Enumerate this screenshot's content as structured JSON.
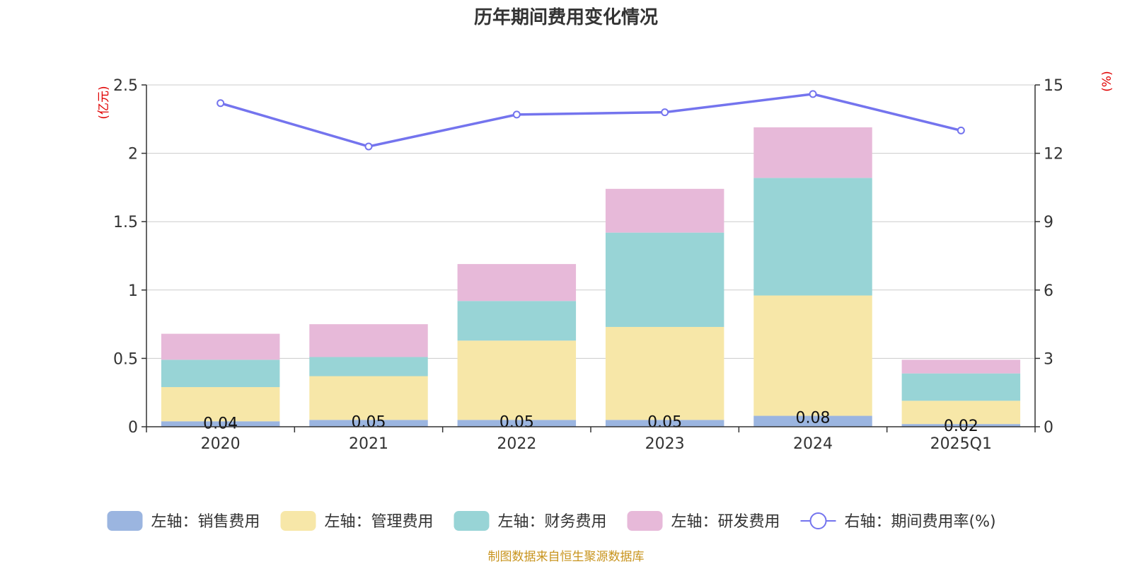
{
  "chart_data": {
    "type": "bar",
    "title": "历年期间费用变化情况",
    "categories": [
      "2020",
      "2021",
      "2022",
      "2023",
      "2024",
      "2025Q1"
    ],
    "left_axis": {
      "unit_label": "(亿元)",
      "ylim": [
        0,
        2.5
      ],
      "ticks": [
        0,
        0.5,
        1,
        1.5,
        2,
        2.5
      ],
      "tick_labels": [
        "0",
        "0.5",
        "1",
        "1.5",
        "2",
        "2.5"
      ]
    },
    "right_axis": {
      "unit_label": "(%)",
      "ylim": [
        0,
        15
      ],
      "ticks": [
        0,
        3,
        6,
        9,
        12,
        15
      ],
      "tick_labels": [
        "0",
        "3",
        "6",
        "9",
        "12",
        "15"
      ]
    },
    "grid": true,
    "series": [
      {
        "name": "左轴：销售费用",
        "axis": "left",
        "kind": "bar",
        "color": "#9bb5e0",
        "values": [
          0.04,
          0.05,
          0.05,
          0.05,
          0.08,
          0.02
        ],
        "labels": [
          "0.04",
          "0.05",
          "0.05",
          "0.05",
          "0.08",
          "0.02"
        ]
      },
      {
        "name": "左轴：管理费用",
        "axis": "left",
        "kind": "bar",
        "color": "#f7e7a8",
        "values": [
          0.25,
          0.32,
          0.58,
          0.68,
          0.88,
          0.17
        ]
      },
      {
        "name": "左轴：财务费用",
        "axis": "left",
        "kind": "bar",
        "color": "#98d4d6",
        "values": [
          0.2,
          0.14,
          0.29,
          0.69,
          0.86,
          0.2
        ]
      },
      {
        "name": "左轴：研发费用",
        "axis": "left",
        "kind": "bar",
        "color": "#e7b9d9",
        "values": [
          0.19,
          0.24,
          0.27,
          0.32,
          0.37,
          0.1
        ]
      },
      {
        "name": "右轴：期间费用率(%)",
        "axis": "right",
        "kind": "line",
        "color": "#7474ee",
        "values": [
          14.2,
          12.3,
          13.7,
          13.8,
          14.6,
          13.0
        ]
      }
    ],
    "source_note": "制图数据来自恒生聚源数据库",
    "colors": {
      "axis_unit": "#e00000",
      "source_note": "#c8941e",
      "grid": "#cccccc",
      "text": "#333333"
    }
  }
}
